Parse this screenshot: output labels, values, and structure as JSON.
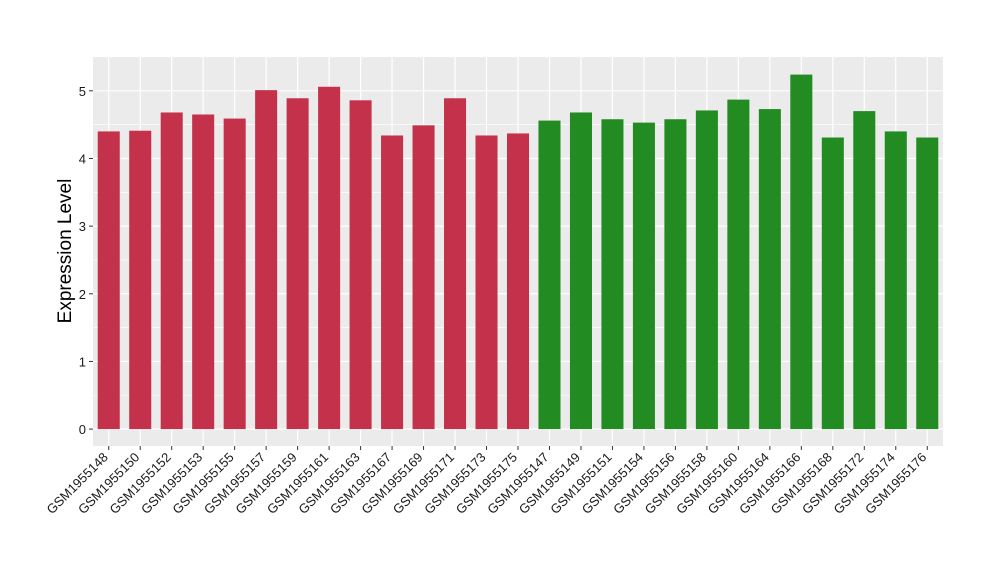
{
  "chart_data": {
    "type": "bar",
    "title": "",
    "xlabel": "",
    "ylabel": "Expression Level",
    "ylim": [
      -0.25,
      5.5
    ],
    "yticks": [
      0,
      1,
      2,
      3,
      4,
      5
    ],
    "grid": true,
    "legend": "none",
    "colors": {
      "group1": "#c4314b",
      "group2": "#228b22",
      "panel": "#ebebeb",
      "grid": "#ffffff"
    },
    "categories": [
      "GSM1955148",
      "GSM1955150",
      "GSM1955152",
      "GSM1955153",
      "GSM1955155",
      "GSM1955157",
      "GSM1955159",
      "GSM1955161",
      "GSM1955163",
      "GSM1955167",
      "GSM1955169",
      "GSM1955171",
      "GSM1955173",
      "GSM1955175",
      "GSM1955147",
      "GSM1955149",
      "GSM1955151",
      "GSM1955154",
      "GSM1955156",
      "GSM1955158",
      "GSM1955160",
      "GSM1955164",
      "GSM1955166",
      "GSM1955168",
      "GSM1955172",
      "GSM1955174",
      "GSM1955176"
    ],
    "values": [
      4.4,
      4.41,
      4.68,
      4.65,
      4.59,
      5.01,
      4.89,
      5.06,
      4.86,
      4.34,
      4.49,
      4.89,
      4.34,
      4.37,
      4.56,
      4.68,
      4.58,
      4.53,
      4.58,
      4.71,
      4.87,
      4.73,
      5.24,
      4.31,
      4.7,
      4.4,
      4.31
    ],
    "groups": [
      "group1",
      "group1",
      "group1",
      "group1",
      "group1",
      "group1",
      "group1",
      "group1",
      "group1",
      "group1",
      "group1",
      "group1",
      "group1",
      "group1",
      "group2",
      "group2",
      "group2",
      "group2",
      "group2",
      "group2",
      "group2",
      "group2",
      "group2",
      "group2",
      "group2",
      "group2",
      "group2"
    ]
  }
}
